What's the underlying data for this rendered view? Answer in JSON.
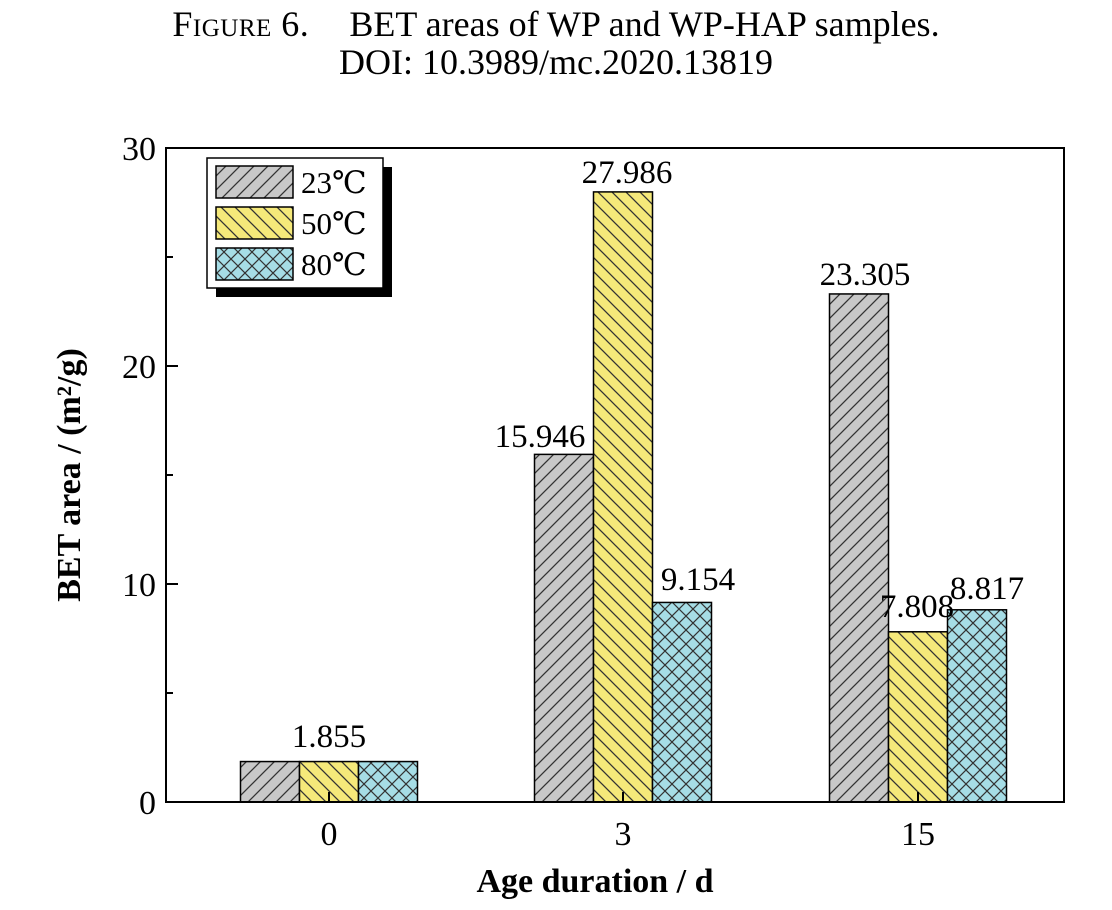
{
  "caption": {
    "figure_label": "Figure 6.",
    "title": "BET areas of WP and WP-HAP samples.",
    "doi": "DOI: 10.3989/mc.2020.13819"
  },
  "chart_data": {
    "type": "bar",
    "categories": [
      "0",
      "3",
      "15"
    ],
    "series": [
      {
        "name": "23℃",
        "values": [
          1.855,
          15.946,
          23.305
        ],
        "color": "#c8c8c8",
        "pattern": "hatch-forward"
      },
      {
        "name": "50℃",
        "values": [
          1.855,
          27.986,
          7.808
        ],
        "color": "#f5e97a",
        "pattern": "hatch-back"
      },
      {
        "name": "80℃",
        "values": [
          1.855,
          9.154,
          8.817
        ],
        "color": "#a6dde6",
        "pattern": "crosshatch"
      }
    ],
    "data_labels": [
      {
        "category": "0",
        "text": "1.855"
      },
      {
        "category": "3",
        "series": "23℃",
        "text": "15.946"
      },
      {
        "category": "3",
        "series": "50℃",
        "text": "27.986"
      },
      {
        "category": "3",
        "series": "80℃",
        "text": "9.154"
      },
      {
        "category": "15",
        "series": "23℃",
        "text": "23.305"
      },
      {
        "category": "15",
        "series": "50℃",
        "text": "7.808"
      },
      {
        "category": "15",
        "series": "80℃",
        "text": "8.817"
      }
    ],
    "xlabel": "Age duration / d",
    "ylabel": "BET area / (m²/g)",
    "ylim": [
      0,
      30
    ],
    "yticks": [
      0,
      10,
      20,
      30
    ],
    "legend_position": "top-left",
    "grid": false
  }
}
